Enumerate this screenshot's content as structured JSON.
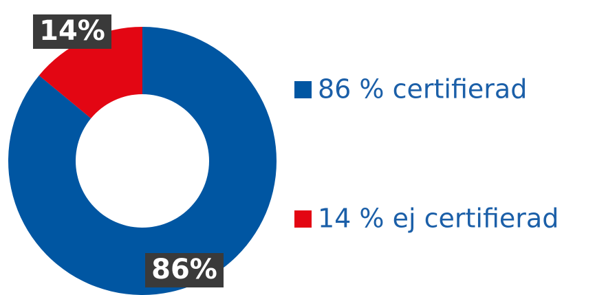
{
  "chart_data": {
    "type": "donut",
    "categories": [
      "86 % certifierad",
      "14 % ej certifierad"
    ],
    "values": [
      86,
      14
    ],
    "value_labels": [
      "86%",
      "14%"
    ],
    "colors": [
      "#0056a2",
      "#e30613"
    ]
  }
}
